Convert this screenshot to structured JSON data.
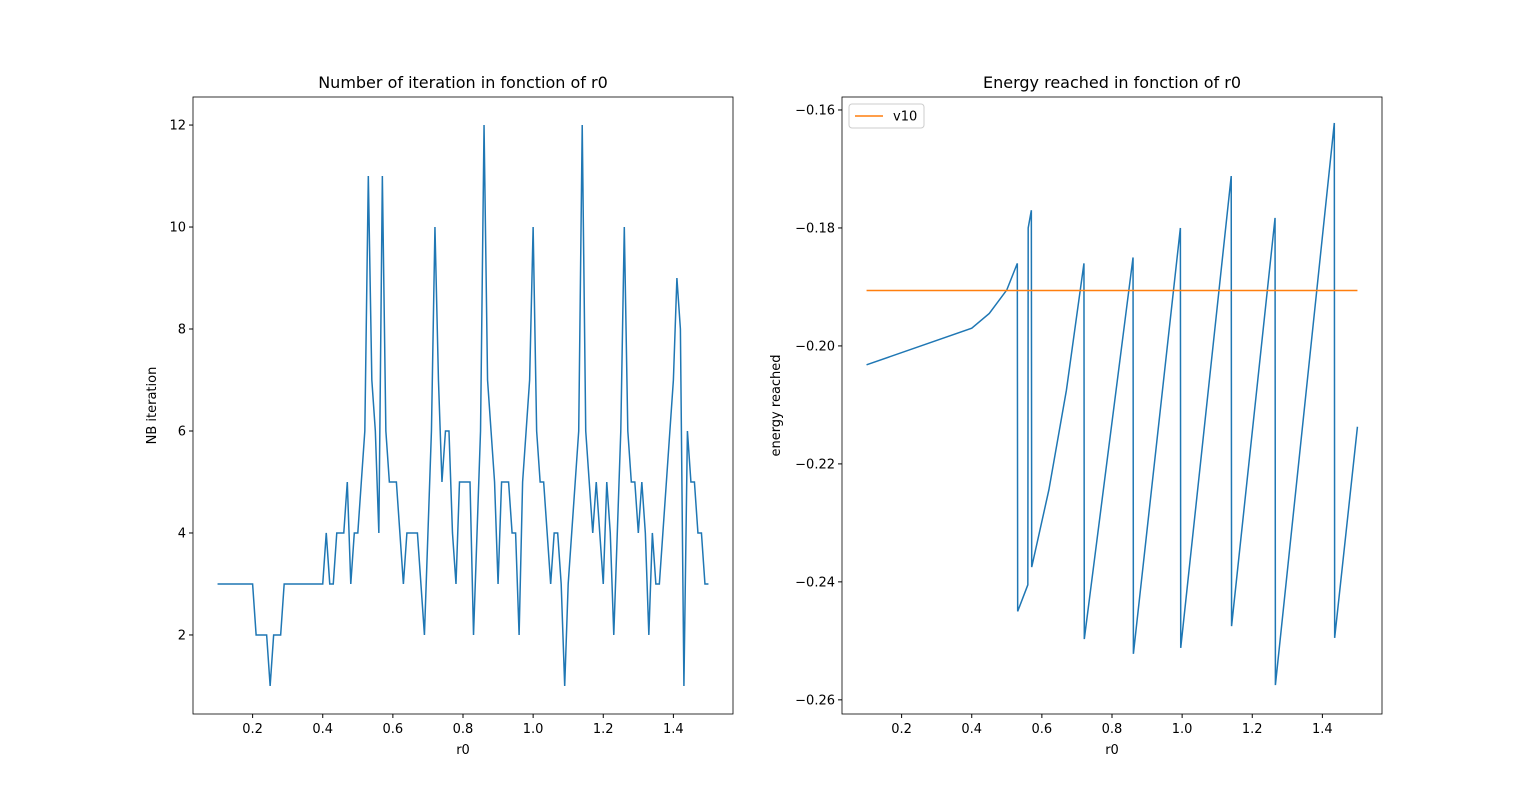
{
  "chart_data": [
    {
      "type": "line",
      "title": "Number of iteration in fonction of r0",
      "xlabel": "r0",
      "ylabel": "NB iteration",
      "xlim": [
        0.03,
        1.57
      ],
      "ylim": [
        0.45,
        12.55
      ],
      "xticks": [
        0.2,
        0.4,
        0.6,
        0.8,
        {
          "value": 1,
          "label": "1.0"
        },
        1.2,
        1.4
      ],
      "yticks": [
        2,
        4,
        6,
        8,
        10,
        12
      ],
      "series": [
        {
          "color": "#1f77b4",
          "x": [
            0.1,
            0.11,
            0.12,
            0.13,
            0.14,
            0.15,
            0.16,
            0.17,
            0.18,
            0.19,
            0.2,
            0.21,
            0.22,
            0.23,
            0.24,
            0.25,
            0.26,
            0.27,
            0.28,
            0.29,
            0.3,
            0.31,
            0.32,
            0.33,
            0.34,
            0.35,
            0.36,
            0.37,
            0.38,
            0.39,
            0.4,
            0.41,
            0.42,
            0.43,
            0.44,
            0.45,
            0.46,
            0.47,
            0.48,
            0.49,
            0.5,
            0.51,
            0.52,
            0.53,
            0.54,
            0.55,
            0.56,
            0.57,
            0.58,
            0.59,
            0.6,
            0.61,
            0.62,
            0.63,
            0.64,
            0.65,
            0.66,
            0.67,
            0.68,
            0.69,
            0.7,
            0.71,
            0.72,
            0.73,
            0.74,
            0.75,
            0.76,
            0.77,
            0.78,
            0.79,
            0.8,
            0.81,
            0.82,
            0.83,
            0.84,
            0.85,
            0.86,
            0.87,
            0.88,
            0.89,
            0.9,
            0.91,
            0.92,
            0.93,
            0.94,
            0.95,
            0.96,
            0.97,
            0.98,
            0.99,
            1.0,
            1.01,
            1.02,
            1.03,
            1.04,
            1.05,
            1.06,
            1.07,
            1.08,
            1.09,
            1.1,
            1.11,
            1.12,
            1.13,
            1.14,
            1.15,
            1.16,
            1.17,
            1.18,
            1.19,
            1.2,
            1.21,
            1.22,
            1.23,
            1.24,
            1.25,
            1.26,
            1.27,
            1.28,
            1.29,
            1.3,
            1.31,
            1.32,
            1.33,
            1.34,
            1.35,
            1.36,
            1.37,
            1.38,
            1.39,
            1.4,
            1.41,
            1.42,
            1.43,
            1.44,
            1.45,
            1.46,
            1.47,
            1.48,
            1.49,
            1.5
          ],
          "values": [
            3,
            3,
            3,
            3,
            3,
            3,
            3,
            3,
            3,
            3,
            3,
            2,
            2,
            2,
            2,
            1,
            2,
            2,
            2,
            3,
            3,
            3,
            3,
            3,
            3,
            3,
            3,
            3,
            3,
            3,
            3,
            4,
            3,
            3,
            4,
            4,
            4,
            5,
            3,
            4,
            4,
            5,
            6,
            11,
            7,
            6,
            4,
            11,
            6,
            5,
            5,
            5,
            4,
            3,
            4,
            4,
            4,
            4,
            3,
            2,
            4,
            6,
            10,
            7,
            5,
            6,
            6,
            4,
            3,
            5,
            5,
            5,
            5,
            2,
            4,
            6,
            12,
            7,
            6,
            5,
            3,
            5,
            5,
            5,
            4,
            4,
            2,
            5,
            6,
            7,
            10,
            6,
            5,
            5,
            4,
            3,
            4,
            4,
            3,
            1,
            3,
            4,
            5,
            6,
            12,
            6,
            5,
            4,
            5,
            4,
            3,
            5,
            4,
            2,
            4,
            6,
            10,
            6,
            5,
            5,
            4,
            5,
            4,
            2,
            4,
            3,
            3,
            4,
            5,
            6,
            7,
            9,
            8,
            1,
            6,
            5,
            5,
            4,
            4,
            3,
            3
          ]
        }
      ]
    },
    {
      "type": "line",
      "title": "Energy reached in fonction of r0",
      "xlabel": "r0",
      "ylabel": "energy reached",
      "xlim": [
        0.03,
        1.57
      ],
      "ylim": [
        -0.2624,
        -0.1578
      ],
      "legend": "upper left",
      "xticks": [
        0.2,
        0.4,
        0.6,
        0.8,
        {
          "value": 1,
          "label": "1.0"
        },
        1.2,
        1.4
      ],
      "yticks": [
        {
          "value": -0.26,
          "label": "−0.26"
        },
        {
          "value": -0.24,
          "label": "−0.24"
        },
        {
          "value": -0.22,
          "label": "−0.22"
        },
        {
          "value": -0.2,
          "label": "−0.20"
        },
        {
          "value": -0.18,
          "label": "−0.18"
        },
        {
          "value": -0.16,
          "label": "−0.16"
        }
      ],
      "series": [
        {
          "color": "#1f77b4",
          "x": [
            0.1,
            0.4,
            0.45,
            0.5,
            0.53,
            0.531,
            0.56,
            0.561,
            0.57,
            0.571,
            0.62,
            0.67,
            0.72,
            0.721,
            0.86,
            0.861,
            0.995,
            0.996,
            1.14,
            1.141,
            1.265,
            1.266,
            1.434,
            1.435,
            1.5
          ],
          "values": [
            -0.2032,
            -0.197,
            -0.1945,
            -0.1905,
            -0.186,
            -0.245,
            -0.2405,
            -0.18,
            -0.177,
            -0.2375,
            -0.2244,
            -0.2075,
            -0.186,
            -0.2497,
            -0.185,
            -0.2522,
            -0.18,
            -0.2512,
            -0.1712,
            -0.2475,
            -0.1783,
            -0.2575,
            -0.1622,
            -0.2495,
            -0.2137
          ]
        },
        {
          "name": "v10",
          "color": "#ff7f0e",
          "x": [
            0.1,
            1.5
          ],
          "values": [
            -0.1906,
            -0.1906
          ]
        }
      ]
    }
  ]
}
